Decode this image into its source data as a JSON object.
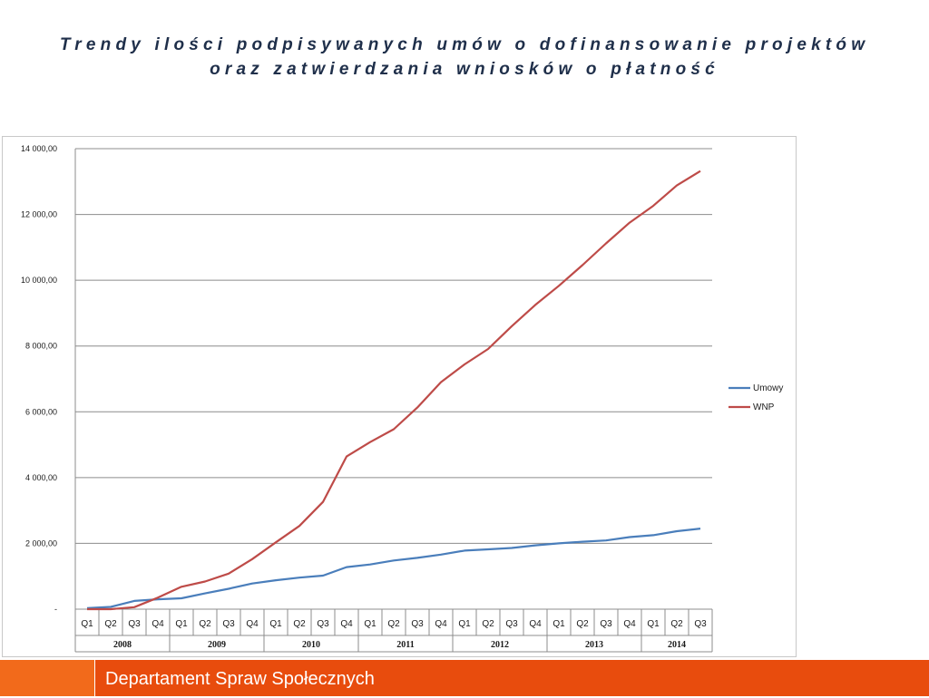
{
  "slide": {
    "title_line1": "Trendy ilości podpisywanych umów o dofinansowanie projektów",
    "title_line2": "oraz zatwierdzania wniosków o płatność",
    "footer_text": "Departament Spraw Społecznych"
  },
  "colors": {
    "umowy": "#4a7ebb",
    "wnp": "#be4b48",
    "footer": "#e84c0d",
    "footer_accent": "#f26a1b"
  },
  "chart_data": {
    "type": "line",
    "title": "",
    "xlabel": "",
    "ylabel": "",
    "ylim": [
      0,
      14000
    ],
    "y_ticks": [
      0,
      2000,
      4000,
      6000,
      8000,
      10000,
      12000,
      14000
    ],
    "y_tick_labels": [
      "-",
      "2 000,00",
      "4 000,00",
      "6 000,00",
      "8 000,00",
      "10 000,00",
      "12 000,00",
      "14 000,00"
    ],
    "grid": true,
    "legend_position": "right",
    "quarters": [
      "Q1",
      "Q2",
      "Q3",
      "Q4",
      "Q1",
      "Q2",
      "Q3",
      "Q4",
      "Q1",
      "Q2",
      "Q3",
      "Q4",
      "Q1",
      "Q2",
      "Q3",
      "Q4",
      "Q1",
      "Q2",
      "Q3",
      "Q4",
      "Q1",
      "Q2",
      "Q3",
      "Q4",
      "Q1",
      "Q2",
      "Q3"
    ],
    "years": [
      {
        "label": "2008",
        "count": 4
      },
      {
        "label": "2009",
        "count": 4
      },
      {
        "label": "2010",
        "count": 4
      },
      {
        "label": "2011",
        "count": 4
      },
      {
        "label": "2012",
        "count": 4
      },
      {
        "label": "2013",
        "count": 4
      },
      {
        "label": "2014",
        "count": 3
      }
    ],
    "series": [
      {
        "name": "Umowy",
        "values": [
          30,
          70,
          250,
          300,
          330,
          480,
          620,
          780,
          880,
          960,
          1020,
          1280,
          1360,
          1480,
          1560,
          1660,
          1780,
          1820,
          1860,
          1940,
          2000,
          2050,
          2090,
          2190,
          2250,
          2370,
          2450
        ]
      },
      {
        "name": "WNP",
        "values": [
          0,
          0,
          60,
          350,
          680,
          840,
          1080,
          1520,
          2030,
          2530,
          3260,
          4640,
          5080,
          5470,
          6130,
          6900,
          7440,
          7910,
          8600,
          9250,
          9830,
          10460,
          11120,
          11750,
          12260,
          12880,
          13320
        ]
      }
    ]
  }
}
